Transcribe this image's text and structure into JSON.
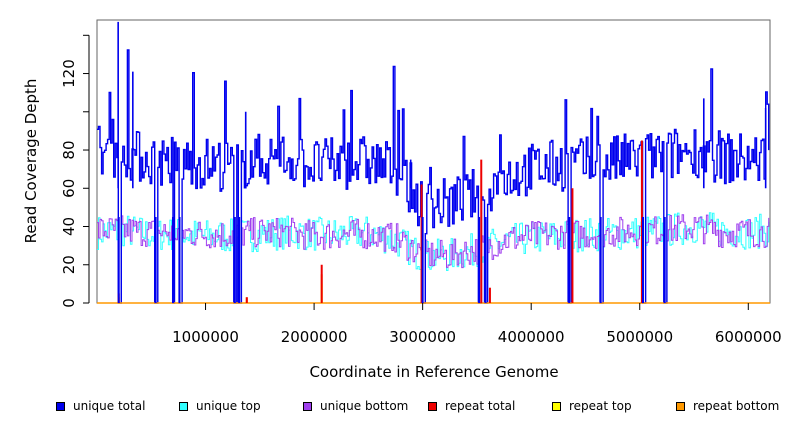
{
  "chart_data": {
    "type": "line",
    "title": "",
    "xlabel": "Coordinate in Reference Genome",
    "ylabel": "Read Coverage Depth",
    "xlim": [
      0,
      6200000
    ],
    "ylim": [
      0,
      148
    ],
    "x_ticks": [
      1000000,
      2000000,
      3000000,
      4000000,
      5000000,
      6000000
    ],
    "x_tick_labels": [
      "1000000",
      "2000000",
      "3000000",
      "4000000",
      "5000000",
      "6000000"
    ],
    "y_ticks": [
      0,
      20,
      40,
      60,
      80,
      120
    ],
    "y_tick_labels": [
      "0",
      "20",
      "40",
      "60",
      "80",
      "120"
    ],
    "grid": false,
    "legend_position": "bottom",
    "colors": {
      "unique_total": "#0000ee",
      "unique_top": "#33ffff",
      "unique_bottom": "#a040ee",
      "repeat_total": "#ee0000",
      "repeat_top": "#ffff00",
      "repeat_bottom": "#ff9900"
    },
    "series": [
      {
        "name": "unique total",
        "key": "unique_total",
        "x": [
          0,
          250000,
          500000,
          750000,
          1000000,
          1250000,
          1500000,
          1750000,
          2000000,
          2250000,
          2500000,
          2750000,
          3000000,
          3250000,
          3500000,
          3750000,
          4000000,
          4250000,
          4500000,
          4750000,
          5000000,
          5250000,
          5500000,
          5750000,
          6000000,
          6200000
        ],
        "values": [
          80,
          78,
          75,
          74,
          73,
          72,
          75,
          76,
          72,
          73,
          74,
          70,
          50,
          52,
          57,
          66,
          70,
          72,
          73,
          74,
          76,
          77,
          80,
          76,
          75,
          76
        ]
      },
      {
        "name": "unique top",
        "key": "unique_top",
        "x": [
          0,
          250000,
          500000,
          750000,
          1000000,
          1250000,
          1500000,
          1750000,
          2000000,
          2250000,
          2500000,
          2750000,
          3000000,
          3250000,
          3500000,
          3750000,
          4000000,
          4250000,
          4500000,
          4750000,
          5000000,
          5250000,
          5500000,
          5750000,
          6000000,
          6200000
        ],
        "values": [
          37,
          38,
          36,
          36,
          35,
          35,
          36,
          37,
          36,
          36,
          37,
          33,
          24,
          25,
          28,
          32,
          34,
          35,
          36,
          36,
          37,
          38,
          40,
          38,
          37,
          38
        ]
      },
      {
        "name": "unique bottom",
        "key": "unique_bottom",
        "x": [
          0,
          250000,
          500000,
          750000,
          1000000,
          1250000,
          1500000,
          1750000,
          2000000,
          2250000,
          2500000,
          2750000,
          3000000,
          3250000,
          3500000,
          3750000,
          4000000,
          4250000,
          4500000,
          4750000,
          5000000,
          5250000,
          5500000,
          5750000,
          6000000,
          6200000
        ],
        "values": [
          38,
          38,
          37,
          37,
          36,
          36,
          37,
          37,
          35,
          36,
          36,
          34,
          25,
          25,
          28,
          33,
          35,
          36,
          36,
          37,
          38,
          38,
          40,
          37,
          37,
          37
        ]
      },
      {
        "name": "repeat total",
        "key": "repeat_total",
        "x": [
          200000,
          1380000,
          2070000,
          2990000,
          3540000,
          3620000,
          4380000,
          5020000
        ],
        "values": [
          5,
          3,
          20,
          62,
          75,
          8,
          60,
          85
        ]
      },
      {
        "name": "repeat top",
        "key": "repeat_top",
        "x": [
          2070000
        ],
        "values": [
          10
        ]
      },
      {
        "name": "repeat bottom",
        "key": "repeat_bottom",
        "x": [
          200000,
          1380000,
          2070000
        ],
        "values": [
          3,
          3,
          15
        ]
      }
    ],
    "dropouts_x": [
      200000,
      540000,
      700000,
      760000,
      1270000,
      1310000,
      3000000,
      3520000,
      3580000,
      4350000,
      4640000,
      5030000,
      5230000
    ]
  },
  "legend": {
    "items": [
      {
        "label": "unique total",
        "color": "#0000ee"
      },
      {
        "label": "unique top",
        "color": "#33ffff"
      },
      {
        "label": "unique bottom",
        "color": "#a040ee"
      },
      {
        "label": "repeat total",
        "color": "#ee0000"
      },
      {
        "label": "repeat top",
        "color": "#ffff00"
      },
      {
        "label": "repeat bottom",
        "color": "#ff9900"
      }
    ]
  }
}
